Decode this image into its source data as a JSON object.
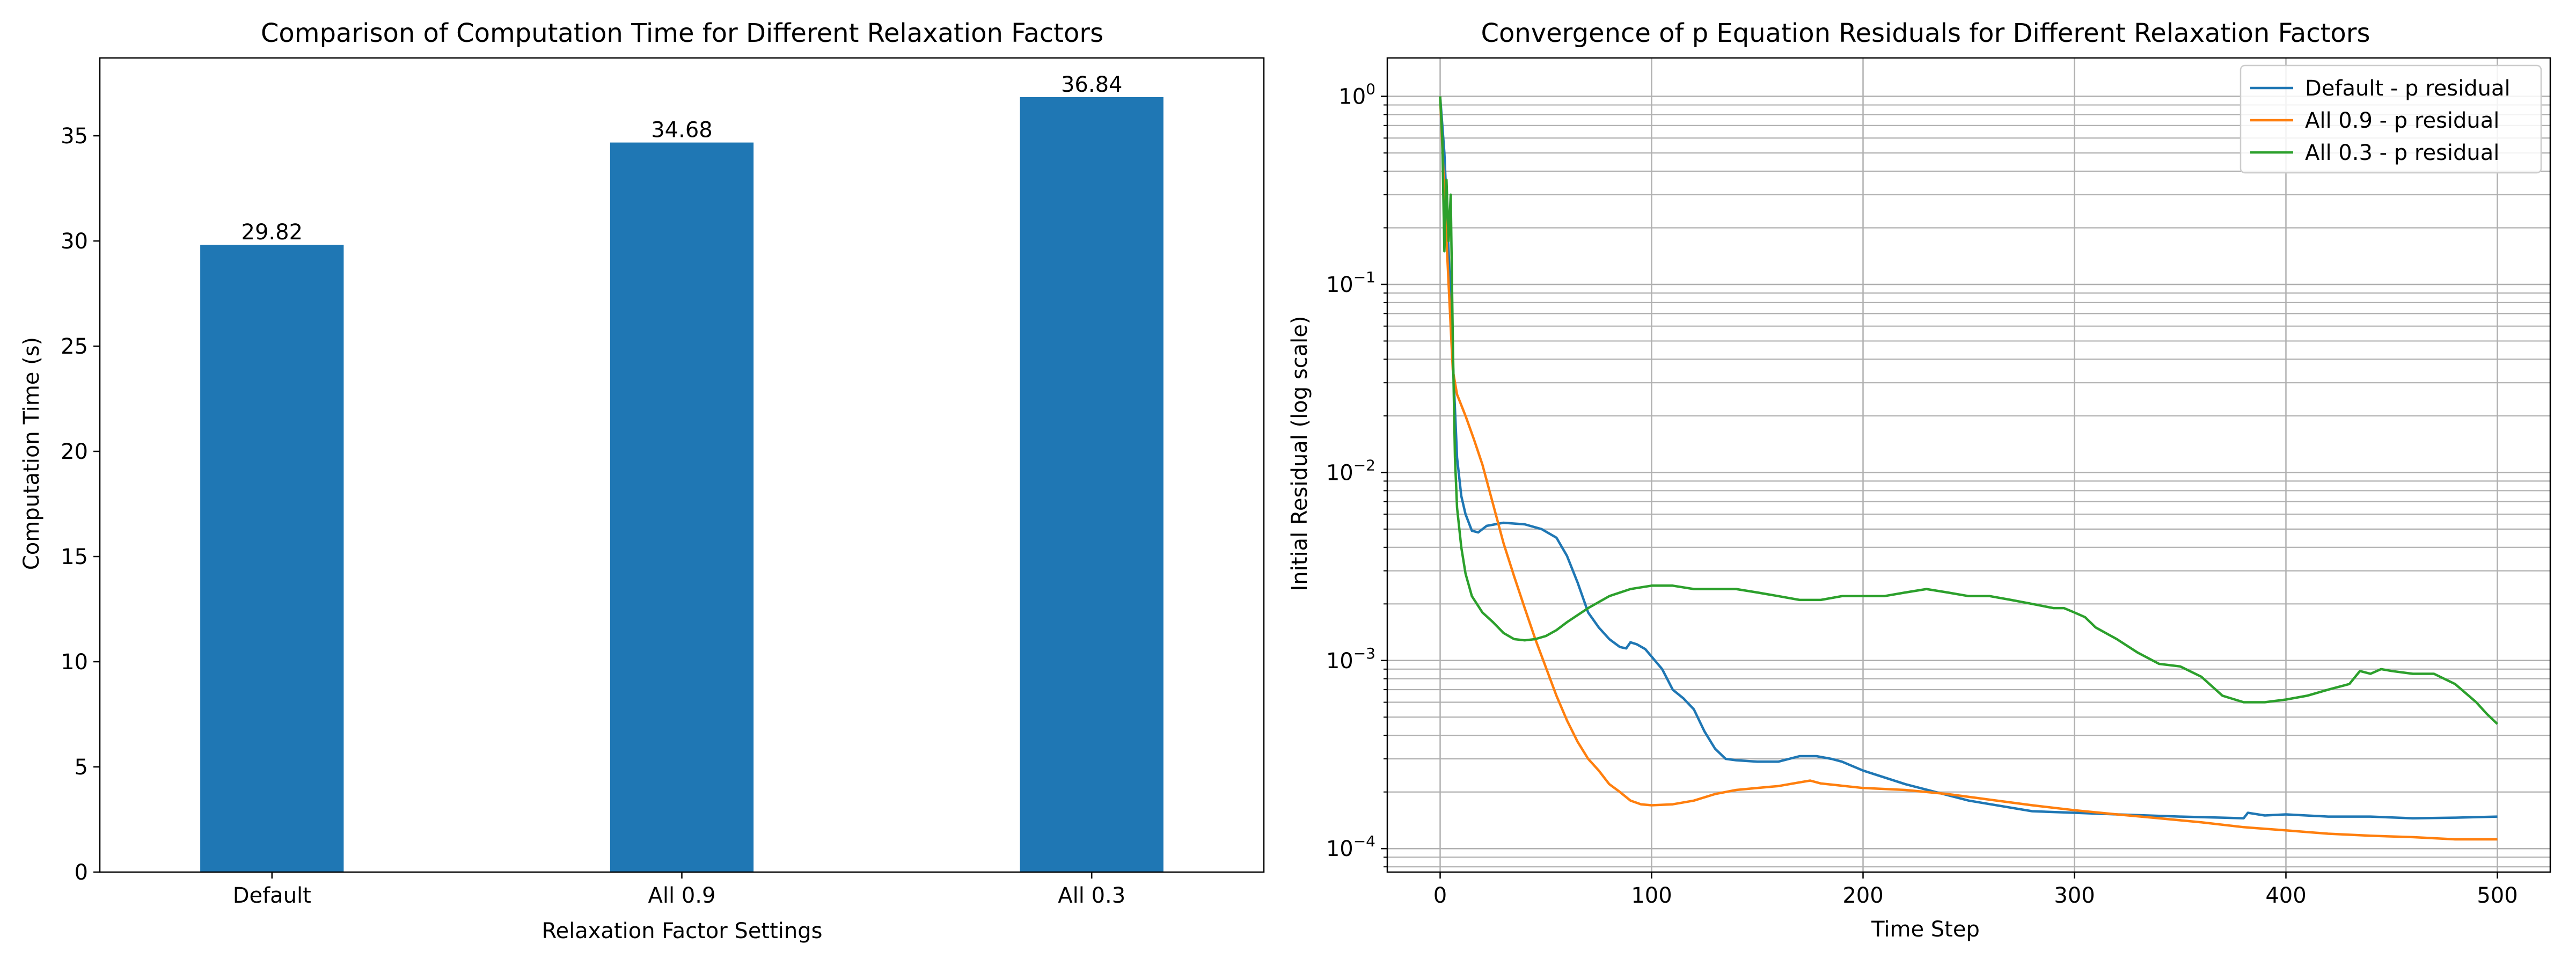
{
  "chart_data": [
    {
      "type": "bar",
      "title": "Comparison of Computation Time for Different Relaxation Factors",
      "xlabel": "Relaxation Factor Settings",
      "ylabel": "Computation Time (s)",
      "categories": [
        "Default",
        "All 0.9",
        "All 0.3"
      ],
      "values": [
        29.82,
        34.68,
        36.84
      ],
      "value_labels": [
        "29.82",
        "34.68",
        "36.84"
      ],
      "ylim": [
        0,
        38.7
      ],
      "yticks": [
        0,
        5,
        10,
        15,
        20,
        25,
        30,
        35
      ],
      "color": "#1f77b4",
      "grid": false
    },
    {
      "type": "line",
      "title": "Convergence of p Equation Residuals for Different Relaxation Factors",
      "xlabel": "Time Step",
      "ylabel": "Initial Residual (log scale)",
      "yscale": "log",
      "xlim": [
        -25,
        525
      ],
      "ylim": [
        7.5e-05,
        1.6
      ],
      "xticks": [
        0,
        100,
        200,
        300,
        400,
        500
      ],
      "yticks": [
        {
          "value": 1,
          "base": "10",
          "exp": "0"
        },
        {
          "value": 0.1,
          "base": "10",
          "exp": "−1"
        },
        {
          "value": 0.01,
          "base": "10",
          "exp": "−2"
        },
        {
          "value": 0.001,
          "base": "10",
          "exp": "−3"
        },
        {
          "value": 0.0001,
          "base": "10",
          "exp": "−4"
        }
      ],
      "grid": true,
      "legend_position": "top-right",
      "series": [
        {
          "name": "Default - p residual",
          "color": "#1f77b4",
          "points": [
            [
              0,
              1.0
            ],
            [
              2,
              0.5
            ],
            [
              4,
              0.15
            ],
            [
              6,
              0.04
            ],
            [
              8,
              0.012
            ],
            [
              10,
              0.0075
            ],
            [
              12,
              0.006
            ],
            [
              15,
              0.0049
            ],
            [
              18,
              0.0048
            ],
            [
              22,
              0.0052
            ],
            [
              30,
              0.0054
            ],
            [
              40,
              0.0053
            ],
            [
              48,
              0.005
            ],
            [
              55,
              0.0045
            ],
            [
              60,
              0.0036
            ],
            [
              65,
              0.0026
            ],
            [
              70,
              0.0018
            ],
            [
              75,
              0.0015
            ],
            [
              80,
              0.0013
            ],
            [
              85,
              0.00118
            ],
            [
              88,
              0.00116
            ],
            [
              90,
              0.00125
            ],
            [
              93,
              0.00122
            ],
            [
              97,
              0.00115
            ],
            [
              100,
              0.00105
            ],
            [
              105,
              0.0009
            ],
            [
              110,
              0.0007
            ],
            [
              115,
              0.00063
            ],
            [
              120,
              0.00055
            ],
            [
              125,
              0.00042
            ],
            [
              130,
              0.00034
            ],
            [
              135,
              0.0003
            ],
            [
              140,
              0.000295
            ],
            [
              150,
              0.00029
            ],
            [
              160,
              0.00029
            ],
            [
              170,
              0.00031
            ],
            [
              178,
              0.00031
            ],
            [
              185,
              0.0003
            ],
            [
              190,
              0.00029
            ],
            [
              200,
              0.00026
            ],
            [
              220,
              0.00022
            ],
            [
              250,
              0.00018
            ],
            [
              280,
              0.000158
            ],
            [
              300,
              0.000155
            ],
            [
              320,
              0.000152
            ],
            [
              350,
              0.000148
            ],
            [
              370,
              0.000146
            ],
            [
              380,
              0.000145
            ],
            [
              382,
              0.000155
            ],
            [
              390,
              0.00015
            ],
            [
              400,
              0.000152
            ],
            [
              420,
              0.000148
            ],
            [
              440,
              0.000148
            ],
            [
              460,
              0.000145
            ],
            [
              480,
              0.000146
            ],
            [
              500,
              0.000148
            ]
          ]
        },
        {
          "name": "All 0.9 - p residual",
          "color": "#ff7f0e",
          "points": [
            [
              0,
              1.0
            ],
            [
              2,
              0.3
            ],
            [
              4,
              0.1
            ],
            [
              6,
              0.035
            ],
            [
              8,
              0.026
            ],
            [
              12,
              0.02
            ],
            [
              16,
              0.015
            ],
            [
              20,
              0.011
            ],
            [
              25,
              0.0068
            ],
            [
              30,
              0.0042
            ],
            [
              35,
              0.0028
            ],
            [
              40,
              0.0019
            ],
            [
              45,
              0.0013
            ],
            [
              50,
              0.00092
            ],
            [
              55,
              0.00065
            ],
            [
              60,
              0.00048
            ],
            [
              65,
              0.00037
            ],
            [
              70,
              0.0003
            ],
            [
              75,
              0.00026
            ],
            [
              80,
              0.00022
            ],
            [
              85,
              0.0002
            ],
            [
              90,
              0.00018
            ],
            [
              95,
              0.000172
            ],
            [
              100,
              0.00017
            ],
            [
              110,
              0.000172
            ],
            [
              120,
              0.00018
            ],
            [
              130,
              0.000195
            ],
            [
              140,
              0.000205
            ],
            [
              150,
              0.00021
            ],
            [
              160,
              0.000215
            ],
            [
              170,
              0.000225
            ],
            [
              175,
              0.00023
            ],
            [
              180,
              0.000222
            ],
            [
              200,
              0.00021
            ],
            [
              220,
              0.000205
            ],
            [
              240,
              0.000195
            ],
            [
              260,
              0.000182
            ],
            [
              280,
              0.00017
            ],
            [
              300,
              0.00016
            ],
            [
              320,
              0.000152
            ],
            [
              340,
              0.000145
            ],
            [
              360,
              0.000138
            ],
            [
              380,
              0.00013
            ],
            [
              400,
              0.000125
            ],
            [
              420,
              0.00012
            ],
            [
              440,
              0.000117
            ],
            [
              460,
              0.000115
            ],
            [
              480,
              0.000112
            ],
            [
              500,
              0.000112
            ]
          ]
        },
        {
          "name": "All 0.3 - p residual",
          "color": "#2ca02c",
          "points": [
            [
              0,
              1.0
            ],
            [
              1,
              0.6
            ],
            [
              2,
              0.15
            ],
            [
              3,
              0.36
            ],
            [
              4,
              0.17
            ],
            [
              5,
              0.3
            ],
            [
              6,
              0.05
            ],
            [
              7,
              0.012
            ],
            [
              8,
              0.0065
            ],
            [
              10,
              0.004
            ],
            [
              12,
              0.0029
            ],
            [
              15,
              0.0022
            ],
            [
              20,
              0.0018
            ],
            [
              25,
              0.0016
            ],
            [
              30,
              0.0014
            ],
            [
              35,
              0.0013
            ],
            [
              40,
              0.00128
            ],
            [
              45,
              0.0013
            ],
            [
              50,
              0.00135
            ],
            [
              55,
              0.00145
            ],
            [
              60,
              0.0016
            ],
            [
              70,
              0.0019
            ],
            [
              80,
              0.0022
            ],
            [
              90,
              0.0024
            ],
            [
              100,
              0.0025
            ],
            [
              110,
              0.0025
            ],
            [
              120,
              0.0024
            ],
            [
              130,
              0.0024
            ],
            [
              140,
              0.0024
            ],
            [
              150,
              0.0023
            ],
            [
              160,
              0.0022
            ],
            [
              170,
              0.0021
            ],
            [
              180,
              0.0021
            ],
            [
              190,
              0.0022
            ],
            [
              200,
              0.0022
            ],
            [
              210,
              0.0022
            ],
            [
              220,
              0.0023
            ],
            [
              230,
              0.0024
            ],
            [
              240,
              0.0023
            ],
            [
              250,
              0.0022
            ],
            [
              260,
              0.0022
            ],
            [
              270,
              0.0021
            ],
            [
              280,
              0.002
            ],
            [
              290,
              0.0019
            ],
            [
              295,
              0.0019
            ],
            [
              300,
              0.0018
            ],
            [
              305,
              0.0017
            ],
            [
              310,
              0.0015
            ],
            [
              320,
              0.0013
            ],
            [
              330,
              0.0011
            ],
            [
              340,
              0.00096
            ],
            [
              350,
              0.00093
            ],
            [
              360,
              0.00082
            ],
            [
              370,
              0.00065
            ],
            [
              380,
              0.0006
            ],
            [
              390,
              0.0006
            ],
            [
              400,
              0.00062
            ],
            [
              410,
              0.00065
            ],
            [
              420,
              0.0007
            ],
            [
              430,
              0.00075
            ],
            [
              435,
              0.00088
            ],
            [
              440,
              0.00085
            ],
            [
              445,
              0.0009
            ],
            [
              450,
              0.00088
            ],
            [
              460,
              0.00085
            ],
            [
              470,
              0.00085
            ],
            [
              480,
              0.00075
            ],
            [
              490,
              0.0006
            ],
            [
              495,
              0.00052
            ],
            [
              500,
              0.00046
            ]
          ]
        }
      ]
    }
  ]
}
